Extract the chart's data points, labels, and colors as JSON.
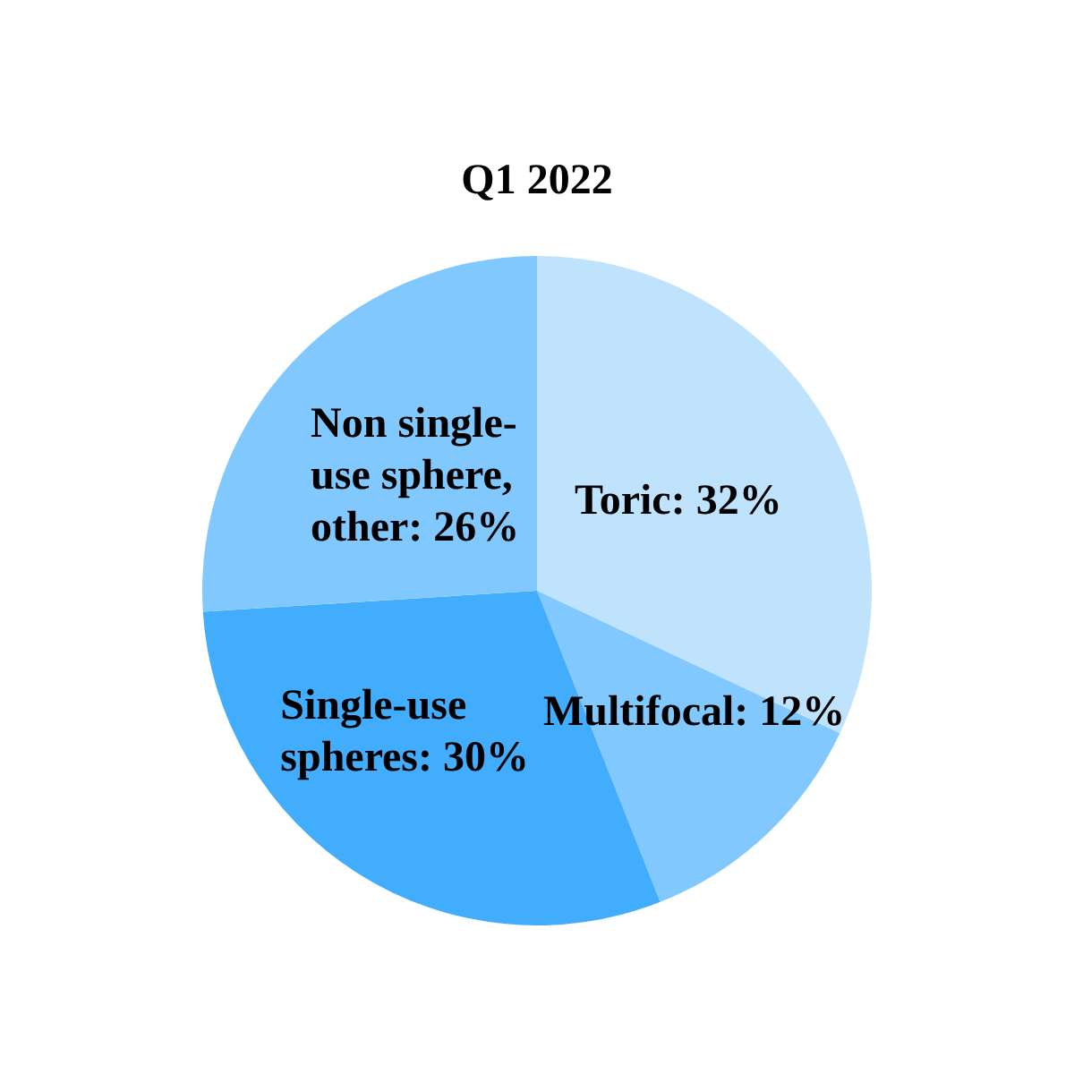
{
  "chart_data": {
    "type": "pie",
    "title": "Q1 2022",
    "categories": [
      "Toric",
      "Multifocal",
      "Single-use spheres",
      "Non single-use sphere, other"
    ],
    "values": [
      32,
      12,
      30,
      26
    ],
    "value_labels": [
      "32%",
      "12%",
      "30%",
      "26%"
    ],
    "colors": [
      "#c0e3fd",
      "#80c8fd",
      "#42acfd",
      "#80c8fd"
    ],
    "legend": false
  }
}
